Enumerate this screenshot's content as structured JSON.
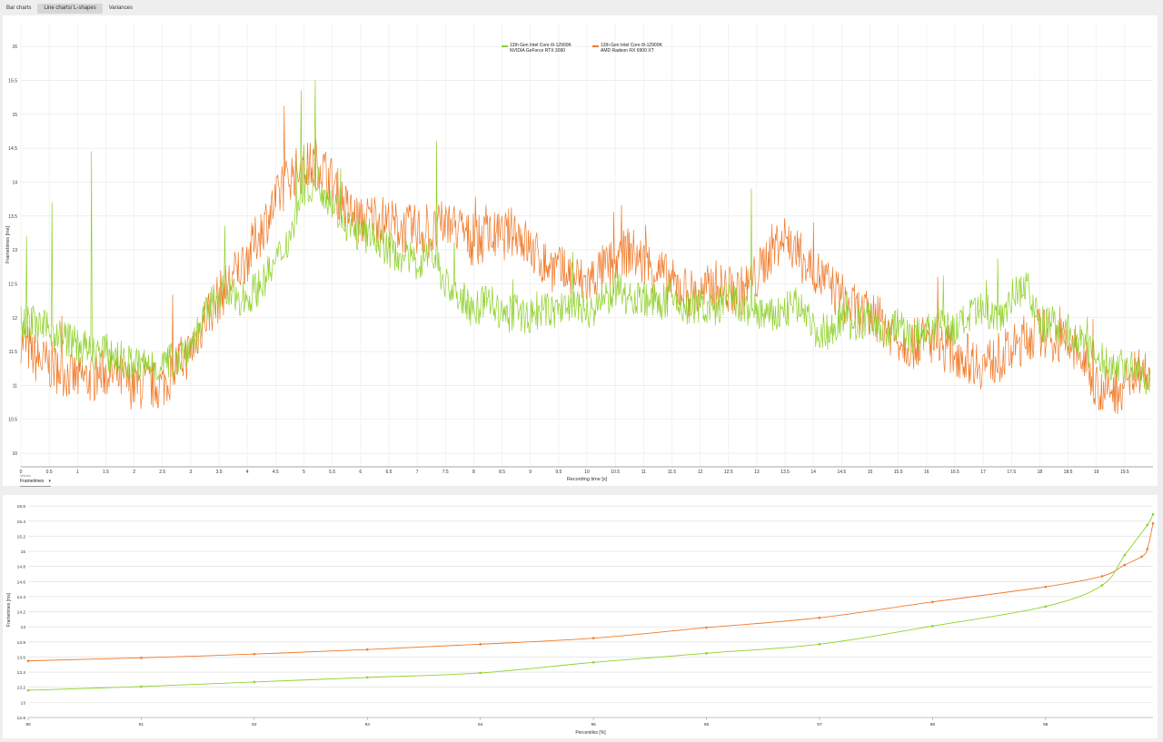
{
  "tabs": [
    {
      "label": "Bar charts",
      "active": false
    },
    {
      "label": "Line charts/ L-shapes",
      "active": true
    },
    {
      "label": "Variances",
      "active": false
    }
  ],
  "dropdown": {
    "caption": "Values",
    "value": "Frametimes"
  },
  "colors": {
    "series1": "#8fd12a",
    "series2": "#f07a2a"
  },
  "chart_data": [
    {
      "type": "line",
      "xlabel": "Recording time [s]",
      "ylabel": "Frametimes [ms]",
      "xlim": [
        0,
        20
      ],
      "ylim": [
        9.8,
        16.35
      ],
      "x_ticks": [
        "0",
        "0.5",
        "1",
        "1.5",
        "2",
        "2.5",
        "3",
        "3.5",
        "4",
        "4.5",
        "5",
        "5.5",
        "6",
        "6.5",
        "7",
        "7.5",
        "8",
        "8.5",
        "9",
        "9.5",
        "10",
        "10.5",
        "11",
        "11.5",
        "12",
        "12.5",
        "13",
        "13.5",
        "14",
        "14.5",
        "15",
        "15.5",
        "16",
        "16.5",
        "17",
        "17.5",
        "18",
        "18.5",
        "19",
        "19.5"
      ],
      "y_ticks": [
        "10",
        "10.5",
        "11",
        "11.5",
        "12",
        "12.5",
        "13",
        "13.5",
        "14",
        "14.5",
        "15",
        "15.5",
        "16"
      ],
      "grid": true,
      "legend_position": "top-center",
      "series": [
        {
          "name": "12th Gen Intel Core i9-12900K NVIDIA GeForce RTX 3090",
          "color": "#8fd12a",
          "x": [
            0,
            0.25,
            0.5,
            0.75,
            1,
            1.25,
            1.5,
            1.75,
            2,
            2.25,
            2.5,
            2.75,
            3,
            3.25,
            3.5,
            3.75,
            4,
            4.25,
            4.5,
            4.75,
            5,
            5.25,
            5.5,
            5.75,
            6,
            6.25,
            6.5,
            6.75,
            7,
            7.25,
            7.5,
            7.75,
            8,
            8.25,
            8.5,
            8.75,
            9,
            9.25,
            9.5,
            9.75,
            10,
            10.25,
            10.5,
            10.75,
            11,
            11.25,
            11.5,
            11.75,
            12,
            12.25,
            12.5,
            12.75,
            13,
            13.25,
            13.5,
            13.75,
            14,
            14.25,
            14.5,
            14.75,
            15,
            15.25,
            15.5,
            15.75,
            16,
            16.25,
            16.5,
            16.75,
            17,
            17.25,
            17.5,
            17.75,
            18,
            18.25,
            18.5,
            18.75,
            19,
            19.25,
            19.5,
            19.75,
            19.95
          ],
          "y": [
            12.0,
            11.9,
            11.8,
            11.7,
            11.6,
            11.5,
            11.5,
            11.4,
            11.3,
            11.3,
            11.3,
            11.4,
            11.6,
            12.0,
            12.4,
            12.3,
            12.3,
            12.5,
            12.8,
            13.2,
            13.9,
            14.0,
            13.7,
            13.4,
            13.2,
            13.2,
            13.0,
            12.9,
            12.8,
            13.0,
            12.5,
            12.3,
            12.1,
            12.3,
            12.0,
            12.1,
            12.0,
            12.1,
            12.1,
            12.2,
            12.1,
            12.2,
            12.4,
            12.3,
            12.3,
            12.2,
            12.3,
            12.1,
            12.2,
            12.1,
            12.3,
            12.1,
            12.1,
            12.0,
            12.1,
            12.2,
            11.8,
            11.8,
            12.0,
            11.9,
            12.0,
            11.8,
            11.9,
            11.7,
            11.8,
            11.9,
            11.8,
            12.0,
            12.1,
            12.0,
            12.3,
            12.5,
            11.9,
            11.9,
            11.8,
            11.6,
            11.4,
            11.3,
            11.3,
            11.2,
            11.1
          ]
        },
        {
          "name": "12th Gen Intel Core i9-12900K AMD Radeon RX 6900 XT",
          "color": "#f07a2a",
          "x": [
            0,
            0.25,
            0.5,
            0.75,
            1,
            1.25,
            1.5,
            1.75,
            2,
            2.25,
            2.5,
            2.75,
            3,
            3.25,
            3.5,
            3.75,
            4,
            4.25,
            4.5,
            4.75,
            5,
            5.25,
            5.5,
            5.75,
            6,
            6.25,
            6.5,
            6.75,
            7,
            7.25,
            7.5,
            7.75,
            8,
            8.25,
            8.5,
            8.75,
            9,
            9.25,
            9.5,
            9.75,
            10,
            10.25,
            10.5,
            10.75,
            11,
            11.25,
            11.5,
            11.75,
            12,
            12.25,
            12.5,
            12.75,
            13,
            13.25,
            13.5,
            13.75,
            14,
            14.25,
            14.5,
            14.75,
            15,
            15.25,
            15.5,
            15.75,
            16,
            16.25,
            16.5,
            16.75,
            17,
            17.25,
            17.5,
            17.75,
            18,
            18.25,
            18.5,
            18.75,
            19,
            19.25,
            19.5,
            19.75,
            19.95
          ],
          "y": [
            11.7,
            11.4,
            11.3,
            11.2,
            11.1,
            11.1,
            11.2,
            11.1,
            11.0,
            11.0,
            11.0,
            11.3,
            11.5,
            12.0,
            12.3,
            12.6,
            12.9,
            13.3,
            13.7,
            14.1,
            14.2,
            14.3,
            14.0,
            13.6,
            13.4,
            13.5,
            13.4,
            13.3,
            13.3,
            13.2,
            13.4,
            13.3,
            13.1,
            13.2,
            13.2,
            13.3,
            13.0,
            12.8,
            12.7,
            12.6,
            12.5,
            12.7,
            12.8,
            13.0,
            12.8,
            12.7,
            12.5,
            12.4,
            12.3,
            12.5,
            12.4,
            12.4,
            12.6,
            13.0,
            13.2,
            12.9,
            12.7,
            12.5,
            12.3,
            12.1,
            12.0,
            11.9,
            11.7,
            11.6,
            11.7,
            11.6,
            11.5,
            11.4,
            11.3,
            11.4,
            11.5,
            11.7,
            11.8,
            11.7,
            11.6,
            11.4,
            11.0,
            10.9,
            11.0,
            11.2,
            11.3
          ]
        }
      ]
    },
    {
      "type": "line",
      "xlabel": "Percentiles [%]",
      "ylabel": "Frametimes [ms]",
      "xlim": [
        90,
        99.95
      ],
      "ylim": [
        12.8,
        15.65
      ],
      "x_ticks": [
        "90",
        "91",
        "92",
        "93",
        "94",
        "95",
        "96",
        "97",
        "98",
        "99"
      ],
      "y_ticks": [
        "12.8",
        "13",
        "13.2",
        "13.4",
        "13.6",
        "13.8",
        "14",
        "14.2",
        "14.4",
        "14.6",
        "14.8",
        "15",
        "15.2",
        "15.4",
        "15.6"
      ],
      "grid": true,
      "series": [
        {
          "color": "#8fd12a",
          "x": [
            90,
            91,
            92,
            93,
            94,
            95,
            96,
            97,
            98,
            99,
            99.5,
            99.7,
            99.9,
            99.95
          ],
          "y": [
            13.16,
            13.21,
            13.27,
            13.33,
            13.39,
            13.53,
            13.65,
            13.77,
            14.01,
            14.27,
            14.55,
            14.95,
            15.35,
            15.49
          ]
        },
        {
          "color": "#f07a2a",
          "x": [
            90,
            91,
            92,
            93,
            94,
            95,
            96,
            97,
            98,
            99,
            99.5,
            99.7,
            99.85,
            99.9,
            99.95
          ],
          "y": [
            13.55,
            13.59,
            13.64,
            13.7,
            13.77,
            13.85,
            13.99,
            14.12,
            14.33,
            14.53,
            14.67,
            14.82,
            14.93,
            15.03,
            15.37
          ]
        }
      ]
    }
  ]
}
